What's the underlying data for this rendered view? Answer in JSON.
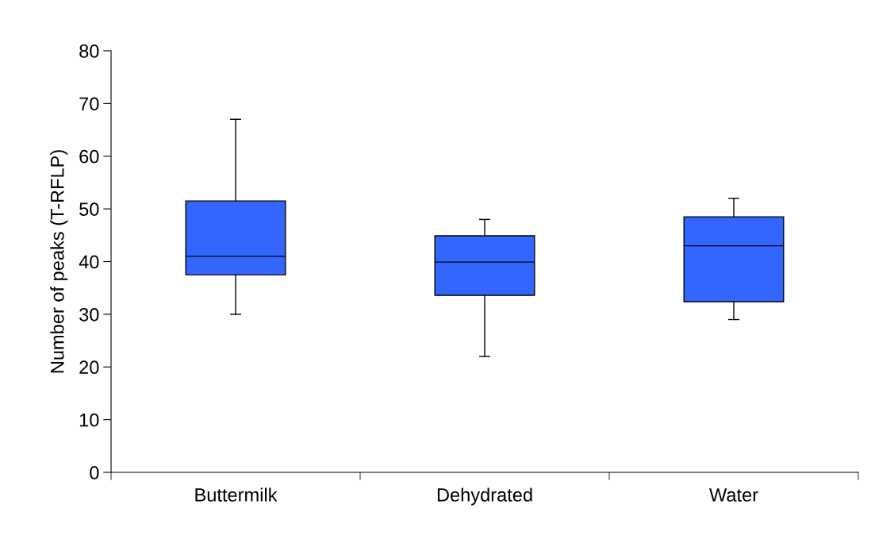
{
  "chart_data": {
    "type": "box",
    "ylabel": "Number of peaks (T-RFLP)",
    "categories": [
      "Buttermilk",
      "Dehydrated",
      "Water"
    ],
    "series": [
      {
        "color": "#3366ff",
        "boxes": [
          {
            "low": 30,
            "q1": 37.5,
            "median": 41,
            "q3": 51.5,
            "high": 67
          },
          {
            "low": 22,
            "q1": 33.6,
            "median": 39.9,
            "q3": 44.9,
            "high": 48
          },
          {
            "low": 29,
            "q1": 32.4,
            "median": 43,
            "q3": 48.5,
            "high": 52
          }
        ]
      }
    ],
    "ylim": [
      0,
      80
    ],
    "yticks": [
      0,
      10,
      20,
      30,
      40,
      50,
      60,
      70,
      80
    ],
    "grid": false
  }
}
